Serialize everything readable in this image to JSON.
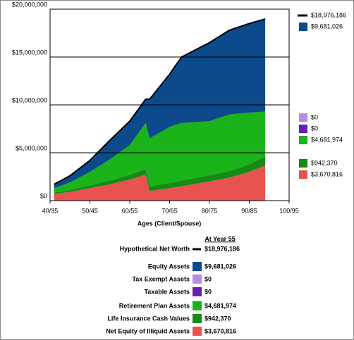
{
  "chart_data": {
    "type": "stacked-area",
    "x_label": "Ages (Client/Spouse)",
    "x": [
      41,
      45,
      50,
      55,
      60,
      64,
      65,
      70,
      73,
      80,
      85,
      90,
      94
    ],
    "xlim": [
      40,
      100
    ],
    "xticks": [
      {
        "value": 40,
        "label": "40/35"
      },
      {
        "value": 50,
        "label": "50/45"
      },
      {
        "value": 60,
        "label": "60/55"
      },
      {
        "value": 70,
        "label": "70/65"
      },
      {
        "value": 80,
        "label": "80/75"
      },
      {
        "value": 90,
        "label": "90/85"
      },
      {
        "value": 100,
        "label": "100/95"
      }
    ],
    "ylim": [
      0,
      20000000
    ],
    "yticks": [
      {
        "value": 0,
        "label": "$0"
      },
      {
        "value": 5000000,
        "label": "$5,000,000"
      },
      {
        "value": 10000000,
        "label": "$10,000,000"
      },
      {
        "value": 15000000,
        "label": "$15,000,000"
      },
      {
        "value": 20000000,
        "label": "$20,000,000"
      }
    ],
    "grid": true,
    "legend_title": "At Year 55",
    "series": [
      {
        "name": "Net Equity of Illiquid Assets",
        "color": "#e8534f",
        "values": [
          700000,
          900000,
          1300000,
          1700000,
          2200000,
          2700000,
          1000000,
          1300000,
          1500000,
          2000000,
          2400000,
          3000000,
          3670816
        ],
        "value_labels": [
          null,
          null,
          null,
          null,
          null,
          null,
          null,
          null,
          null,
          null,
          null,
          null,
          "$3,670,816"
        ]
      },
      {
        "name": "Life Insurance Cash Values",
        "color": "#168a16",
        "values": [
          150000,
          200000,
          300000,
          400000,
          500000,
          600000,
          500000,
          550000,
          600000,
          650000,
          700000,
          800000,
          942370
        ],
        "value_labels": [
          null,
          null,
          null,
          null,
          null,
          null,
          null,
          null,
          null,
          null,
          null,
          null,
          "$942,370"
        ]
      },
      {
        "name": "Retirement Plan Assets",
        "color": "#1ab31a",
        "values": [
          450000,
          800000,
          1400000,
          2200000,
          3100000,
          4800000,
          5000000,
          5850000,
          6000000,
          5650000,
          5900000,
          5400000,
          4681974
        ],
        "value_labels": [
          null,
          null,
          null,
          null,
          null,
          null,
          null,
          null,
          null,
          null,
          null,
          null,
          "$4,681,974"
        ]
      },
      {
        "name": "Taxable Assets",
        "color": "#6a1fb0",
        "values": [
          0,
          0,
          0,
          0,
          0,
          0,
          0,
          0,
          0,
          0,
          0,
          0,
          0
        ],
        "value_labels": [
          null,
          null,
          null,
          null,
          null,
          null,
          null,
          null,
          null,
          null,
          null,
          null,
          "$0"
        ]
      },
      {
        "name": "Tax Exempt Assets",
        "color": "#b48fe0",
        "values": [
          0,
          0,
          0,
          0,
          0,
          0,
          0,
          0,
          0,
          0,
          0,
          0,
          0
        ],
        "value_labels": [
          null,
          null,
          null,
          null,
          null,
          null,
          null,
          null,
          null,
          null,
          null,
          null,
          "$0"
        ]
      },
      {
        "name": "Equity Assets",
        "color": "#0d4a8c",
        "values": [
          400000,
          700000,
          1200000,
          2000000,
          2500000,
          2500000,
          4100000,
          5500000,
          6900000,
          8200000,
          8800000,
          9300000,
          9681026
        ],
        "value_labels": [
          null,
          null,
          null,
          null,
          null,
          null,
          null,
          null,
          null,
          null,
          null,
          null,
          "$9,681,026"
        ]
      },
      {
        "name": "Hypothetical Net Worth",
        "color": "#000000",
        "kind": "line",
        "values": [
          1700000,
          2600000,
          4200000,
          6300000,
          8300000,
          10600000,
          10600000,
          13200000,
          15000000,
          16500000,
          17800000,
          18500000,
          18976186
        ],
        "value_labels": [
          null,
          null,
          null,
          null,
          null,
          null,
          null,
          null,
          null,
          null,
          null,
          null,
          "$18,976,186"
        ]
      }
    ]
  }
}
